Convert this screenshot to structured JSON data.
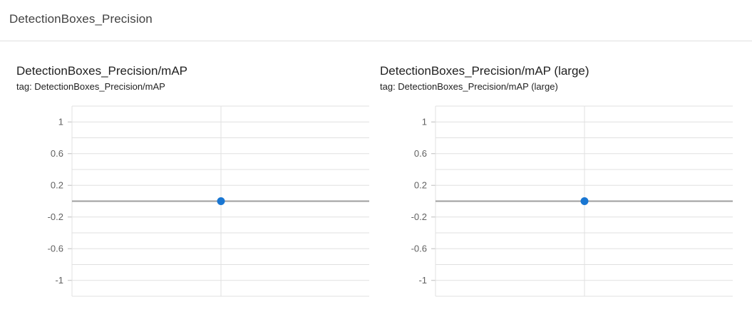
{
  "section": {
    "title": "DetectionBoxes_Precision"
  },
  "chart_data": [
    {
      "type": "scatter",
      "title": "DetectionBoxes_Precision/mAP",
      "tag": "tag: DetectionBoxes_Precision/mAP",
      "ylim": [
        -1.2,
        1.2
      ],
      "yticks": [
        1,
        0.6,
        0.2,
        -0.2,
        -0.6,
        -1
      ],
      "yticks_labels": [
        "1",
        "0.6",
        "0.2",
        "-0.2",
        "-0.6",
        "-1"
      ],
      "grid": true,
      "series": [
        {
          "x": [
            0
          ],
          "y": [
            0
          ]
        }
      ],
      "colors": {
        "point": "#1976d2",
        "zero_line": "#9e9e9e",
        "grid": "#e0e0e0"
      }
    },
    {
      "type": "scatter",
      "title": "DetectionBoxes_Precision/mAP (large)",
      "tag": "tag: DetectionBoxes_Precision/mAP (large)",
      "ylim": [
        -1.2,
        1.2
      ],
      "yticks": [
        1,
        0.6,
        0.2,
        -0.2,
        -0.6,
        -1
      ],
      "yticks_labels": [
        "1",
        "0.6",
        "0.2",
        "-0.2",
        "-0.6",
        "-1"
      ],
      "grid": true,
      "series": [
        {
          "x": [
            0
          ],
          "y": [
            0
          ]
        }
      ],
      "colors": {
        "point": "#1976d2",
        "zero_line": "#9e9e9e",
        "grid": "#e0e0e0"
      }
    }
  ]
}
